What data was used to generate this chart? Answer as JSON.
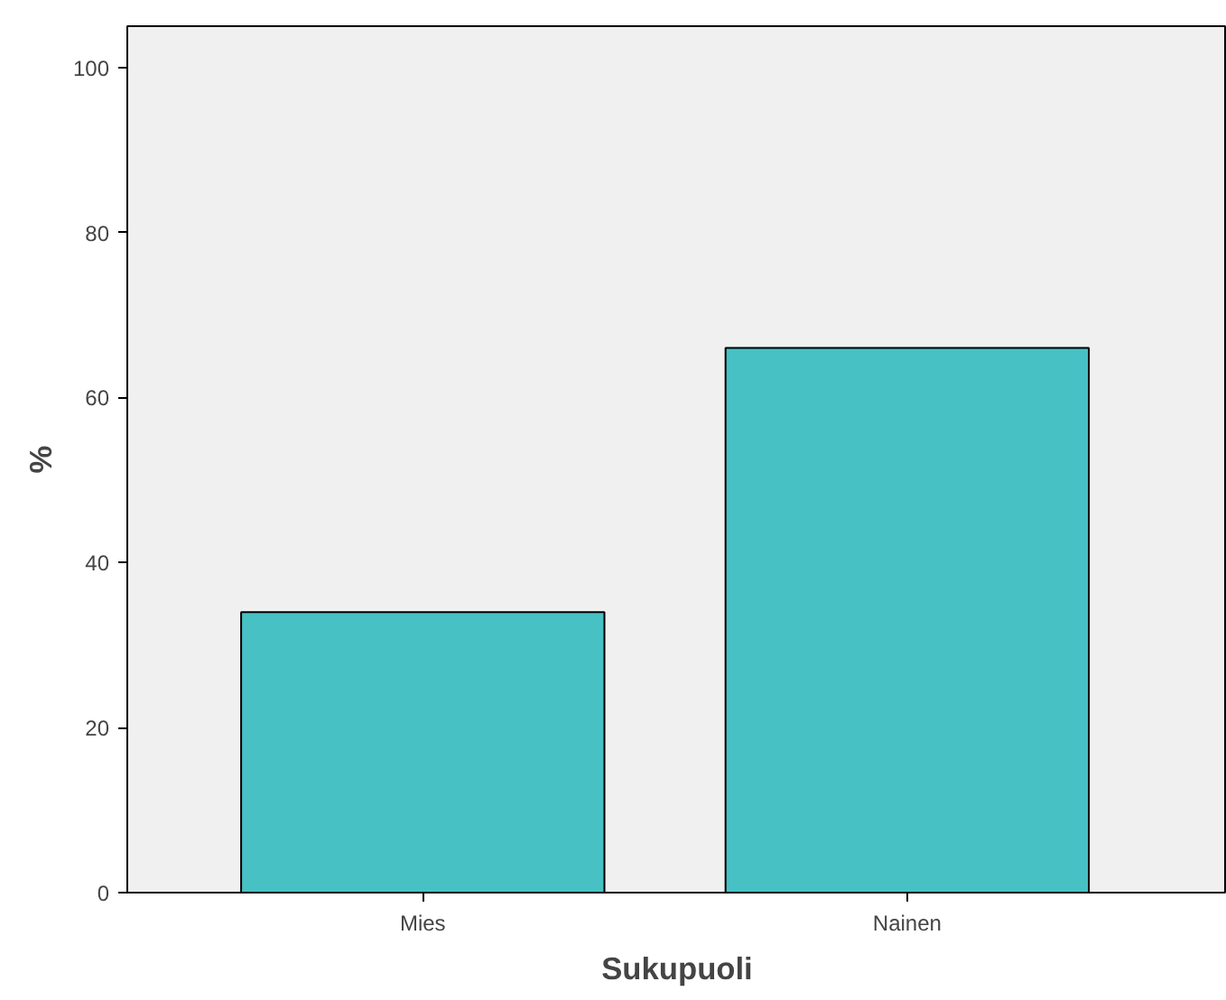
{
  "chart_data": {
    "type": "bar",
    "xlabel": "Sukupuoli",
    "ylabel": "%",
    "categories": [
      "Mies",
      "Nainen"
    ],
    "values": [
      34,
      66
    ],
    "color": "#47c1c4",
    "ylim": [
      0,
      105
    ],
    "yticks": [
      0,
      20,
      40,
      60,
      80,
      100
    ],
    "grid": false
  }
}
